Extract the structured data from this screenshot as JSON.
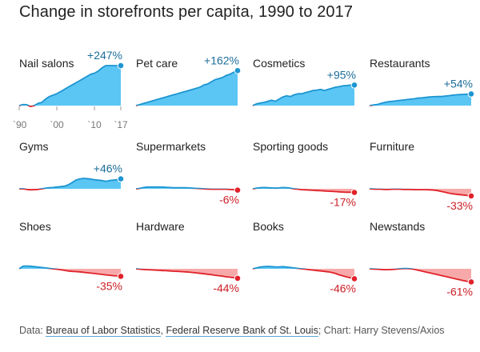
{
  "title": "Change in storefronts per capita, 1990 to 2017",
  "colors": {
    "pos_fill": "#5bc6f4",
    "pos_line": "#1d95d1",
    "pos_text": "#1c6d99",
    "neg_fill": "#f7a9a9",
    "neg_line": "#e0222a",
    "neg_text": "#cc2027",
    "baseline": "#bbbbbb"
  },
  "footer": {
    "prefix": "Data: ",
    "source1": "Bureau of Labor Statistics",
    "sep": ", ",
    "source2": "Federal Reserve Bank of St. Louis",
    "suffix": "; Chart: Harry Stevens/Axios"
  },
  "chart_data": {
    "type": "area",
    "x": [
      1990,
      1991,
      1992,
      1993,
      1994,
      1995,
      1996,
      1997,
      1998,
      1999,
      2000,
      2001,
      2002,
      2003,
      2004,
      2005,
      2006,
      2007,
      2008,
      2009,
      2010,
      2011,
      2012,
      2013,
      2014,
      2015,
      2016,
      2017
    ],
    "x_ticks": [
      "`90",
      "`00",
      "`10",
      "`17"
    ],
    "x_tick_years": [
      1990,
      2000,
      2010,
      2017
    ],
    "y_unit": "% change since 1990",
    "series": [
      {
        "name": "Nail salons",
        "final_label": "+247%",
        "values": [
          0,
          5,
          4,
          -4,
          0,
          10,
          15,
          30,
          42,
          48,
          55,
          65,
          75,
          85,
          95,
          105,
          115,
          125,
          135,
          145,
          150,
          160,
          175,
          190,
          205,
          220,
          235,
          247
        ]
      },
      {
        "name": "Pet care",
        "final_label": "+162%",
        "values": [
          0,
          5,
          10,
          15,
          20,
          25,
          30,
          35,
          40,
          45,
          50,
          55,
          60,
          65,
          70,
          75,
          80,
          85,
          95,
          100,
          110,
          120,
          125,
          130,
          140,
          145,
          155,
          162
        ]
      },
      {
        "name": "Cosmetics",
        "final_label": "+95%",
        "values": [
          0,
          8,
          12,
          15,
          20,
          25,
          20,
          30,
          40,
          45,
          42,
          50,
          55,
          55,
          60,
          65,
          70,
          72,
          75,
          70,
          75,
          80,
          85,
          88,
          92,
          93,
          95,
          95
        ]
      },
      {
        "name": "Restaurants",
        "final_label": "+54%",
        "values": [
          0,
          3,
          5,
          10,
          15,
          18,
          20,
          22,
          24,
          26,
          28,
          30,
          32,
          35,
          36,
          38,
          40,
          41,
          42,
          42,
          44,
          46,
          48,
          50,
          51,
          52,
          53,
          54
        ]
      },
      {
        "name": "Gyms",
        "final_label": "+46%",
        "values": [
          0,
          0,
          -3,
          -5,
          -4,
          -3,
          0,
          3,
          5,
          6,
          8,
          10,
          12,
          18,
          28,
          40,
          45,
          48,
          47,
          45,
          42,
          40,
          38,
          35,
          38,
          40,
          42,
          46
        ]
      },
      {
        "name": "Supermarkets",
        "final_label": "-6%",
        "values": [
          0,
          2,
          6,
          8,
          8,
          8,
          8,
          8,
          7,
          6,
          5,
          5,
          5,
          5,
          4,
          3,
          2,
          1,
          0,
          -1,
          -2,
          -2,
          -2,
          -2,
          -2,
          -3,
          -4,
          -6
        ]
      },
      {
        "name": "Sporting goods",
        "final_label": "-17%",
        "values": [
          0,
          3,
          5,
          6,
          5,
          4,
          3,
          4,
          6,
          5,
          3,
          0,
          -2,
          -4,
          -5,
          -6,
          -7,
          -8,
          -9,
          -10,
          -11,
          -12,
          -13,
          -14,
          -15,
          -16,
          -16,
          -17
        ]
      },
      {
        "name": "Furniture",
        "final_label": "-33%",
        "values": [
          0,
          -1,
          -2,
          -2,
          -3,
          -3,
          -2,
          -2,
          -2,
          -3,
          -3,
          -3,
          -4,
          -4,
          -4,
          -4,
          -5,
          -6,
          -8,
          -12,
          -16,
          -20,
          -23,
          -25,
          -27,
          -29,
          -31,
          -33
        ]
      },
      {
        "name": "Shoes",
        "final_label": "-35%",
        "values": [
          0,
          12,
          13,
          12,
          10,
          8,
          6,
          4,
          2,
          0,
          -2,
          -4,
          -7,
          -10,
          -12,
          -13,
          -14,
          -16,
          -18,
          -20,
          -22,
          -24,
          -26,
          -28,
          -30,
          -32,
          -33,
          -35
        ]
      },
      {
        "name": "Hardware",
        "final_label": "-44%",
        "values": [
          0,
          -2,
          -3,
          -4,
          -5,
          -6,
          -7,
          -8,
          -9,
          -10,
          -11,
          -12,
          -13,
          -14,
          -15,
          -17,
          -19,
          -21,
          -23,
          -25,
          -27,
          -30,
          -32,
          -34,
          -37,
          -39,
          -41,
          -44
        ]
      },
      {
        "name": "Books",
        "final_label": "-46%",
        "values": [
          0,
          4,
          8,
          10,
          11,
          10,
          9,
          9,
          10,
          8,
          6,
          4,
          2,
          0,
          -2,
          -4,
          -6,
          -8,
          -10,
          -12,
          -14,
          -17,
          -22,
          -28,
          -33,
          -38,
          -42,
          -46
        ]
      },
      {
        "name": "Newstands",
        "final_label": "-61%",
        "values": [
          0,
          -1,
          -2,
          -3,
          -4,
          -4,
          -3,
          -2,
          0,
          1,
          1,
          0,
          -3,
          -7,
          -11,
          -15,
          -19,
          -23,
          -27,
          -31,
          -35,
          -39,
          -43,
          -47,
          -51,
          -55,
          -58,
          -61
        ]
      }
    ],
    "grid": false,
    "legend": "none"
  }
}
